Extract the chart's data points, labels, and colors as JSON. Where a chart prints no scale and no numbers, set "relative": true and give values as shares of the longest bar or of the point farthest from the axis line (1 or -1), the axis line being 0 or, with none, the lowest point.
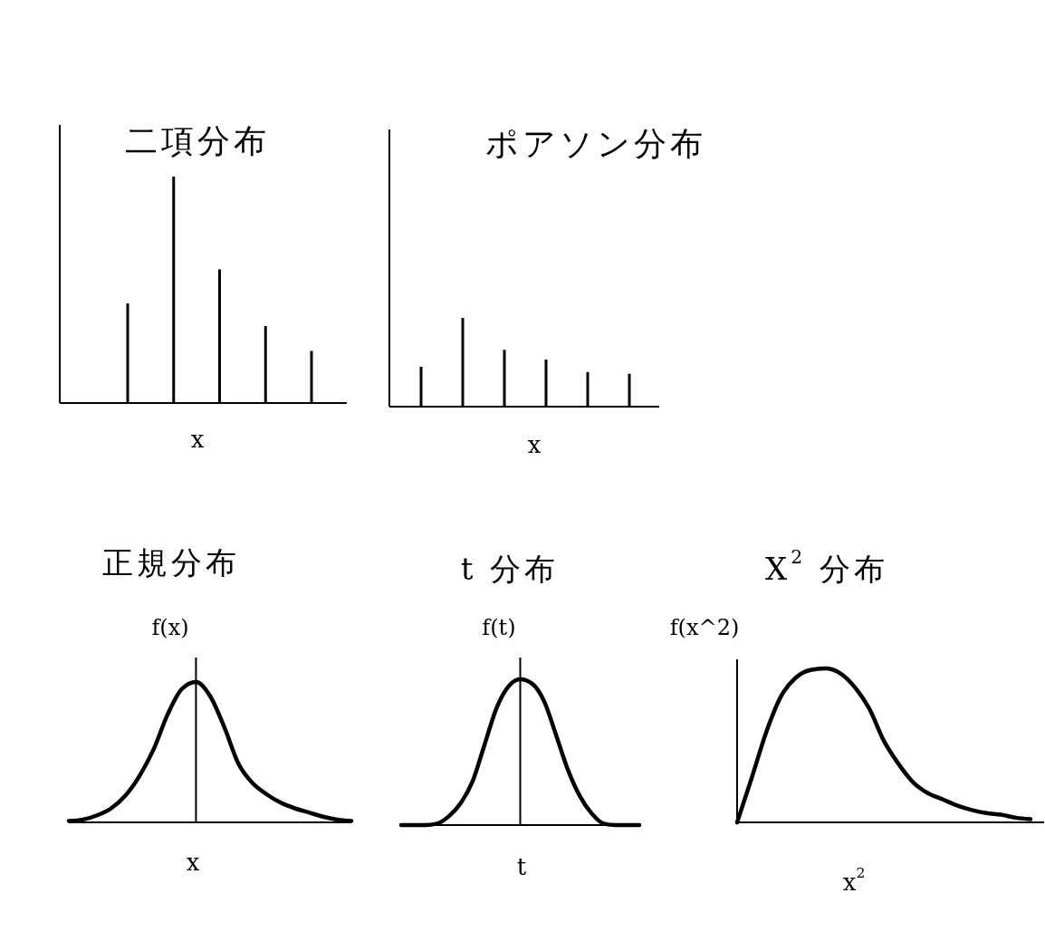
{
  "chart_data": [
    {
      "type": "bar",
      "title": "二項分布",
      "xlabel": "x",
      "relative": true,
      "color": "#000000",
      "categories": [
        null,
        null,
        null,
        null,
        null
      ],
      "values": [
        0.44,
        1,
        0.59,
        0.34,
        0.23
      ]
    },
    {
      "type": "bar",
      "title": "ポアソン分布",
      "xlabel": "x",
      "relative": true,
      "color": "#000000",
      "categories": [
        null,
        null,
        null,
        null,
        null,
        null
      ],
      "values": [
        0.45,
        1,
        0.64,
        0.53,
        0.39,
        0.37
      ]
    },
    {
      "type": "line",
      "title": "正規分布",
      "ylabel": "f(x)",
      "xlabel": "x",
      "relative": true,
      "color": "#000000",
      "categories": [
        null,
        null,
        null,
        null,
        null,
        null,
        null,
        null,
        null,
        null,
        null,
        null,
        null,
        null,
        null,
        null,
        null,
        null,
        null,
        null,
        null
      ],
      "values": [
        0.01,
        0.02,
        0.05,
        0.1,
        0.19,
        0.33,
        0.52,
        0.77,
        0.95,
        1,
        0.9,
        0.68,
        0.42,
        0.28,
        0.2,
        0.14,
        0.1,
        0.07,
        0.04,
        0.02,
        0.01
      ]
    },
    {
      "type": "line",
      "title": "t 分布",
      "ylabel": "f(t)",
      "xlabel": "t",
      "relative": true,
      "color": "#000000",
      "categories": [
        null,
        null,
        null,
        null,
        null,
        null,
        null,
        null,
        null,
        null,
        null,
        null,
        null,
        null,
        null,
        null,
        null,
        null,
        null,
        null,
        null
      ],
      "values": [
        0,
        0,
        0,
        0.01,
        0.06,
        0.15,
        0.3,
        0.55,
        0.8,
        0.95,
        1,
        0.97,
        0.85,
        0.62,
        0.38,
        0.2,
        0.08,
        0.01,
        0,
        0,
        0
      ]
    },
    {
      "type": "line",
      "title": "X$^{2}$ 分布",
      "ylabel": "f(x^2)",
      "xlabel": "x$^{2}$",
      "relative": true,
      "color": "#000000",
      "categories": [
        null,
        null,
        null,
        null,
        null,
        null,
        null,
        null,
        null,
        null,
        null,
        null,
        null,
        null,
        null,
        null,
        null,
        null,
        null,
        null,
        null
      ],
      "values": [
        0,
        0.29,
        0.59,
        0.82,
        0.94,
        0.99,
        1,
        0.97,
        0.88,
        0.74,
        0.53,
        0.38,
        0.26,
        0.19,
        0.15,
        0.11,
        0.08,
        0.06,
        0.05,
        0.03,
        0.02
      ]
    }
  ]
}
